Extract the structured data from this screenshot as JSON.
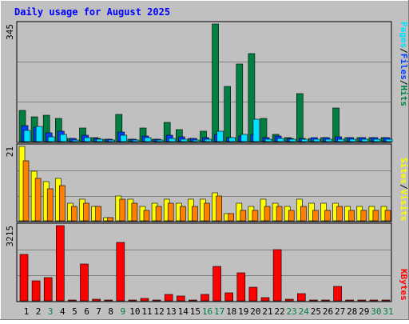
{
  "title": "Daily usage for August 2025",
  "colors": {
    "background": "#c0c0c0",
    "title_text": "#0000ff",
    "hits": "#008040",
    "files": "#0040ff",
    "pages": "#00e0ff",
    "visits": "#ffff00",
    "sites": "#ff8000",
    "kbytes": "#ff0000",
    "weekend_day_label": "#008040",
    "weekday_label": "#000000",
    "gridline": "#808080"
  },
  "chart_data": [
    {
      "type": "bar",
      "title": "Daily usage for August 2025",
      "y_scale_label": "345",
      "ylim": [
        0,
        345
      ],
      "grid": true,
      "legend": "right-vertical",
      "legend_parts": [
        {
          "text": "Pages",
          "color": "#00e0ff"
        },
        {
          "text": "/",
          "color": "#000000"
        },
        {
          "text": "Files",
          "color": "#0040ff"
        },
        {
          "text": "/",
          "color": "#000000"
        },
        {
          "text": "Hits",
          "color": "#008040"
        }
      ],
      "categories": [
        "1",
        "2",
        "3",
        "4",
        "5",
        "6",
        "7",
        "8",
        "9",
        "10",
        "11",
        "12",
        "13",
        "14",
        "15",
        "16",
        "17",
        "18",
        "19",
        "20",
        "21",
        "22",
        "23",
        "24",
        "25",
        "26",
        "27",
        "28",
        "29",
        "30",
        "31"
      ],
      "series": [
        {
          "name": "Hits",
          "color": "#008040",
          "values": [
            91,
            73,
            78,
            68,
            10,
            40,
            12,
            8,
            80,
            8,
            40,
            8,
            56,
            36,
            10,
            30,
            345,
            162,
            228,
            258,
            68,
            20,
            12,
            140,
            10,
            12,
            98,
            12,
            12,
            12,
            12
          ]
        },
        {
          "name": "Files",
          "color": "#0040ff",
          "values": [
            48,
            42,
            25,
            30,
            10,
            18,
            10,
            8,
            27,
            8,
            16,
            8,
            18,
            14,
            10,
            12,
            20,
            12,
            16,
            20,
            12,
            16,
            10,
            10,
            12,
            12,
            14,
            12,
            12,
            12,
            12
          ]
        },
        {
          "name": "Pages",
          "color": "#00e0ff",
          "values": [
            33,
            44,
            15,
            20,
            5,
            12,
            8,
            5,
            18,
            5,
            12,
            5,
            10,
            8,
            5,
            8,
            30,
            12,
            20,
            65,
            8,
            10,
            8,
            8,
            8,
            8,
            8,
            8,
            8,
            8,
            8
          ]
        }
      ]
    },
    {
      "type": "bar",
      "y_scale_label": "21",
      "ylim": [
        0,
        21
      ],
      "grid": true,
      "legend": "right-vertical",
      "legend_parts": [
        {
          "text": "Sites",
          "color": "#ffff00"
        },
        {
          "text": "/",
          "color": "#000000"
        },
        {
          "text": "Visits",
          "color": "#ffff00"
        }
      ],
      "categories": [
        "1",
        "2",
        "3",
        "4",
        "5",
        "6",
        "7",
        "8",
        "9",
        "10",
        "11",
        "12",
        "13",
        "14",
        "15",
        "16",
        "17",
        "18",
        "19",
        "20",
        "21",
        "22",
        "23",
        "24",
        "25",
        "26",
        "27",
        "28",
        "29",
        "30",
        "31"
      ],
      "series": [
        {
          "name": "Visits",
          "color": "#ffff00",
          "values": [
            21,
            14,
            11,
            12,
            5,
            6,
            4,
            1,
            7,
            6,
            4,
            5,
            6,
            5,
            6,
            6,
            8,
            2,
            5,
            4,
            6,
            5,
            4,
            6,
            5,
            5,
            5,
            4,
            4,
            4,
            4
          ]
        },
        {
          "name": "Sites",
          "color": "#ff8000",
          "values": [
            17,
            12,
            9,
            10,
            4,
            5,
            4,
            1,
            6,
            5,
            3,
            4,
            5,
            4,
            4,
            5,
            7,
            2,
            3,
            3,
            4,
            4,
            3,
            4,
            3,
            3,
            4,
            3,
            3,
            3,
            3
          ]
        }
      ]
    },
    {
      "type": "bar",
      "y_scale_label": "3215",
      "ylim": [
        0,
        3215
      ],
      "grid": true,
      "legend": "right-vertical",
      "legend_parts": [
        {
          "text": "KBytes",
          "color": "#ff0000"
        }
      ],
      "categories": [
        "1",
        "2",
        "3",
        "4",
        "5",
        "6",
        "7",
        "8",
        "9",
        "10",
        "11",
        "12",
        "13",
        "14",
        "15",
        "16",
        "17",
        "18",
        "19",
        "20",
        "21",
        "22",
        "23",
        "24",
        "25",
        "26",
        "27",
        "28",
        "29",
        "30",
        "31"
      ],
      "series": [
        {
          "name": "KBytes",
          "color": "#ff0000",
          "values": [
            2000,
            860,
            1000,
            3215,
            20,
            1560,
            60,
            40,
            2500,
            40,
            110,
            40,
            290,
            210,
            30,
            260,
            1480,
            340,
            1180,
            580,
            130,
            2180,
            60,
            310,
            30,
            30,
            600,
            30,
            30,
            30,
            30
          ]
        }
      ]
    }
  ],
  "day_labels": [
    {
      "text": "1",
      "weekend": false
    },
    {
      "text": "2",
      "weekend": false
    },
    {
      "text": "3",
      "weekend": true
    },
    {
      "text": "4",
      "weekend": false
    },
    {
      "text": "5",
      "weekend": false
    },
    {
      "text": "6",
      "weekend": false
    },
    {
      "text": "7",
      "weekend": false
    },
    {
      "text": "8",
      "weekend": false
    },
    {
      "text": "9",
      "weekend": true
    },
    {
      "text": "10",
      "weekend": false
    },
    {
      "text": "11",
      "weekend": false
    },
    {
      "text": "12",
      "weekend": false
    },
    {
      "text": "13",
      "weekend": false
    },
    {
      "text": "14",
      "weekend": false
    },
    {
      "text": "15",
      "weekend": false
    },
    {
      "text": "16",
      "weekend": true
    },
    {
      "text": "17",
      "weekend": true
    },
    {
      "text": "18",
      "weekend": false
    },
    {
      "text": "19",
      "weekend": false
    },
    {
      "text": "20",
      "weekend": false
    },
    {
      "text": "21",
      "weekend": false
    },
    {
      "text": "22",
      "weekend": false
    },
    {
      "text": "23",
      "weekend": true
    },
    {
      "text": "24",
      "weekend": true
    },
    {
      "text": "25",
      "weekend": false
    },
    {
      "text": "26",
      "weekend": false
    },
    {
      "text": "27",
      "weekend": false
    },
    {
      "text": "28",
      "weekend": false
    },
    {
      "text": "29",
      "weekend": false
    },
    {
      "text": "30",
      "weekend": true
    },
    {
      "text": "31",
      "weekend": true
    }
  ]
}
